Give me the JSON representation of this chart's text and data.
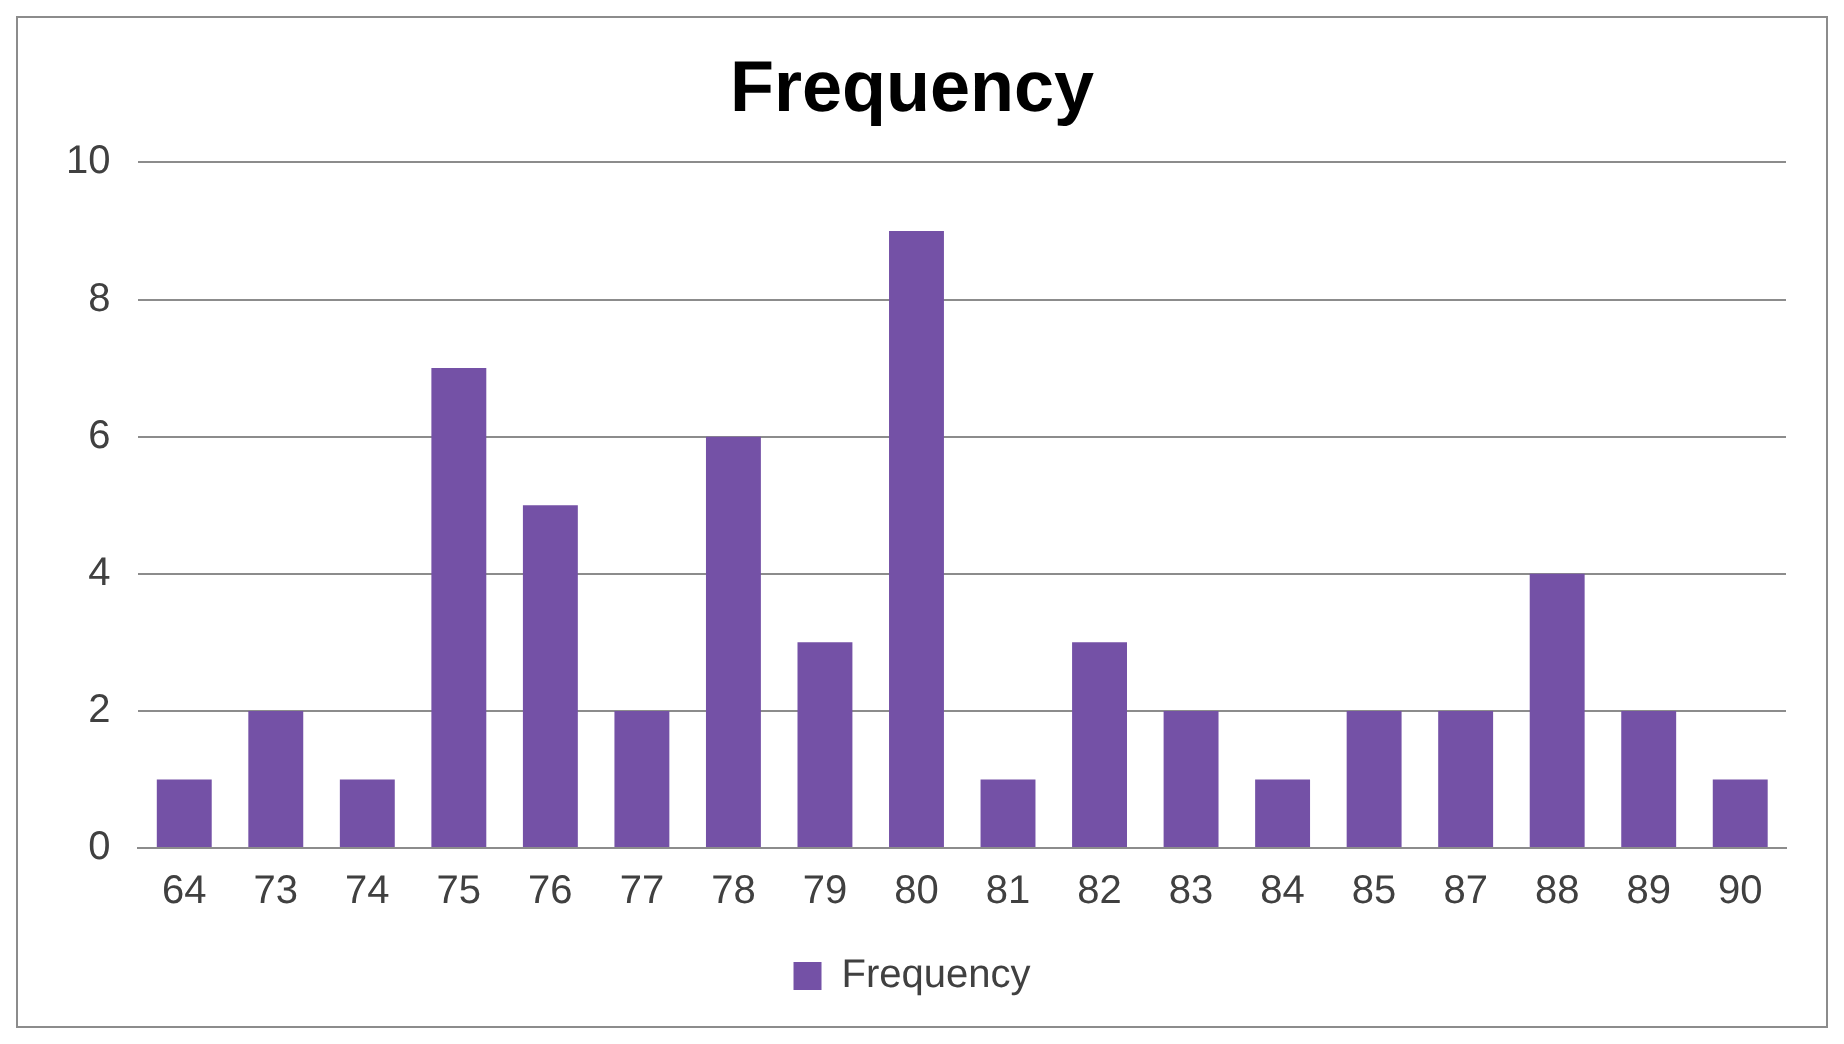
{
  "chart_data": {
    "type": "bar",
    "title": "Frequency",
    "categories": [
      "64",
      "73",
      "74",
      "75",
      "76",
      "77",
      "78",
      "79",
      "80",
      "81",
      "82",
      "83",
      "84",
      "85",
      "87",
      "88",
      "89",
      "90"
    ],
    "series": [
      {
        "name": "Frequency",
        "color": "#7451a6",
        "values": [
          1,
          2,
          1,
          7,
          5,
          2,
          6,
          3,
          9,
          1,
          3,
          2,
          1,
          2,
          2,
          4,
          2,
          1
        ]
      }
    ],
    "ylim": [
      0,
      10
    ],
    "yticks": [
      0,
      2,
      4,
      6,
      8,
      10
    ],
    "grid": "y",
    "legend": "bottom"
  }
}
